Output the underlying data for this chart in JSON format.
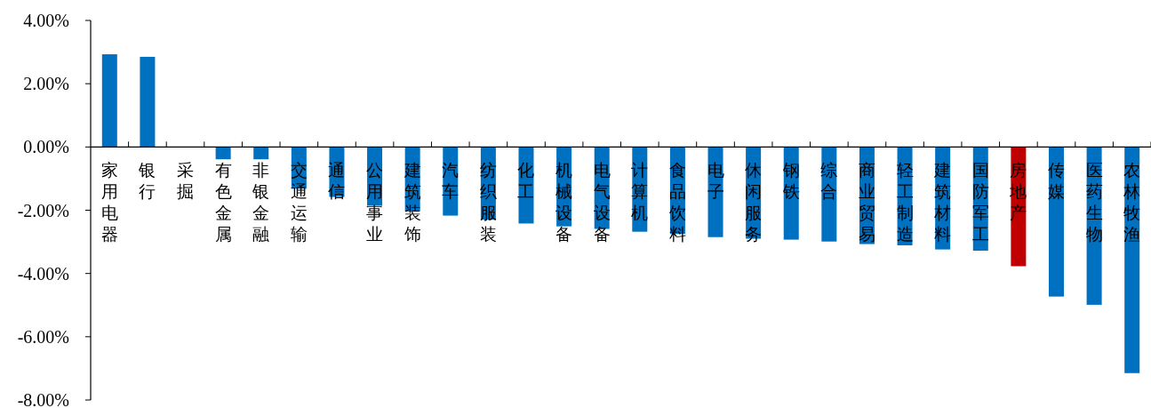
{
  "chart_data": {
    "type": "bar",
    "categories": [
      "家用电器",
      "银行",
      "采掘",
      "有色金属",
      "非银金融",
      "交通运输",
      "通信",
      "公用事业",
      "建筑装饰",
      "汽车",
      "纺织服装",
      "化工",
      "机械设备",
      "电气设备",
      "计算机",
      "食品饮料",
      "电子",
      "休闲服务",
      "钢铁",
      "综合",
      "商业贸易",
      "轻工制造",
      "建筑材料",
      "国防军工",
      "房地产",
      "传媒",
      "医药生物",
      "农林牧渔"
    ],
    "values": [
      2.93,
      2.85,
      0,
      -0.39,
      -0.39,
      -1.32,
      -1.58,
      -1.86,
      -2.04,
      -2.17,
      -2.3,
      -2.42,
      -2.51,
      -2.59,
      -2.68,
      -2.75,
      -2.85,
      -2.9,
      -2.93,
      -2.99,
      -3.07,
      -3.11,
      -3.24,
      -3.28,
      -3.77,
      -4.73,
      -4.99,
      -7.15
    ],
    "colors": [
      "#0070c0",
      "#0070c0",
      "#0070c0",
      "#0070c0",
      "#0070c0",
      "#0070c0",
      "#0070c0",
      "#0070c0",
      "#0070c0",
      "#0070c0",
      "#0070c0",
      "#0070c0",
      "#0070c0",
      "#0070c0",
      "#0070c0",
      "#0070c0",
      "#0070c0",
      "#0070c0",
      "#0070c0",
      "#0070c0",
      "#0070c0",
      "#0070c0",
      "#0070c0",
      "#0070c0",
      "#c00000",
      "#0070c0",
      "#0070c0",
      "#0070c0"
    ],
    "ylim": [
      -8,
      4
    ],
    "yticks": [
      {
        "value": 4,
        "label": "4.00%"
      },
      {
        "value": 2,
        "label": "2.00%"
      },
      {
        "value": 0,
        "label": "0.00%"
      },
      {
        "value": -2,
        "label": "-2.00%"
      },
      {
        "value": -4,
        "label": "-4.00%"
      },
      {
        "value": -6,
        "label": "-6.00%"
      },
      {
        "value": -8,
        "label": "-8.00%"
      }
    ],
    "grid": false
  }
}
